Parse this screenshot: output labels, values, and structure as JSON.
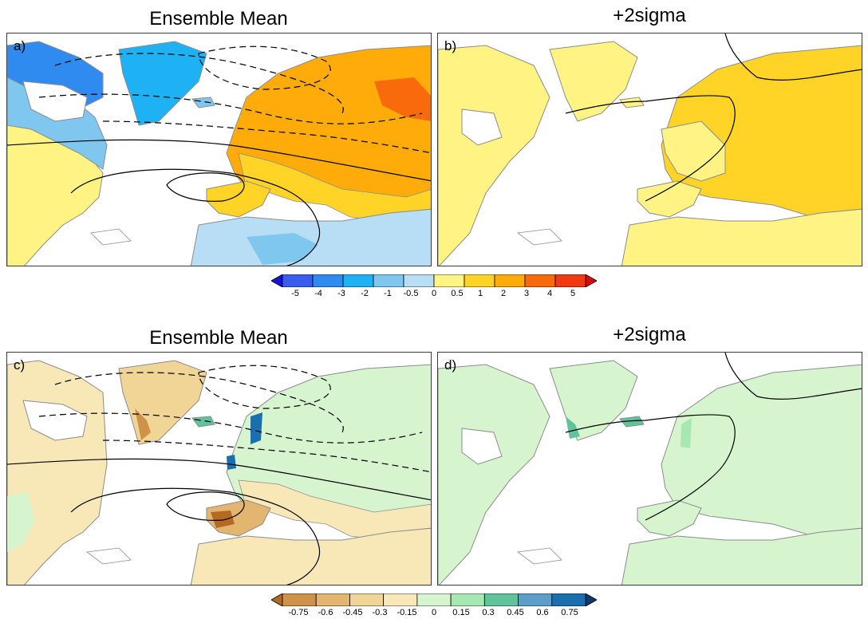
{
  "titles": {
    "a": "Ensemble Mean",
    "b": "+2sigma",
    "c": "Ensemble Mean",
    "d": "+2sigma"
  },
  "panel_labels": {
    "a": "a)",
    "b": "b)",
    "c": "c)",
    "d": "d)"
  },
  "colorbar_top": {
    "ticks": [
      "-5",
      "-4",
      "-3",
      "-2",
      "-1",
      "-0.5",
      "0",
      "0.5",
      "1",
      "2",
      "3",
      "4",
      "5"
    ],
    "colors": [
      "#1515d8",
      "#3a5df0",
      "#2f8bf0",
      "#1eb2f5",
      "#7fc7ef",
      "#b8def5",
      "#fff383",
      "#ffd426",
      "#ffac0a",
      "#f86a0b",
      "#f13a13",
      "#d80a0a"
    ]
  },
  "colorbar_bottom": {
    "ticks": [
      "-0.75",
      "-0.6",
      "-0.45",
      "-0.3",
      "-0.15",
      "0",
      "0.15",
      "0.3",
      "0.45",
      "0.6",
      "0.75"
    ],
    "colors": [
      "#b56a22",
      "#cf924a",
      "#e2b571",
      "#f0d596",
      "#f8e8b8",
      "#d6f5cf",
      "#a7e8b2",
      "#5fc49b",
      "#5c9ec8",
      "#1b6fae",
      "#0c3a70"
    ]
  },
  "map_colors": {
    "ocean": "#ffffff",
    "coast": "#8c8c8c",
    "contour": "#000000"
  }
}
